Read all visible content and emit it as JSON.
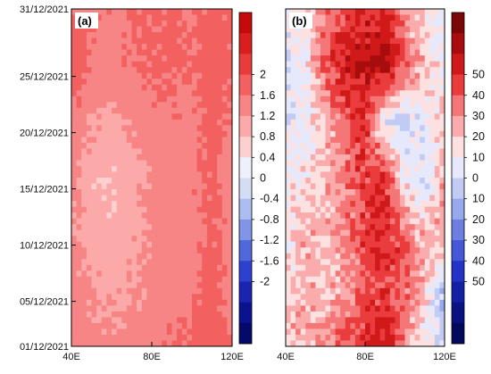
{
  "chart_data": [
    {
      "type": "heatmap",
      "panel_label": "(a)",
      "x_ticks": [
        "40E",
        "80E",
        "120E"
      ],
      "x_tick_values": [
        40,
        80,
        120
      ],
      "y_ticks": [
        "01/12/2021",
        "05/12/2021",
        "10/12/2021",
        "15/12/2021",
        "20/12/2021",
        "25/12/2021",
        "31/12/2021"
      ],
      "y_tick_values": [
        1,
        5,
        10,
        15,
        20,
        25,
        31
      ],
      "xlim": [
        40,
        120
      ],
      "ylim": [
        1,
        31
      ],
      "colorbar": {
        "labels": [
          "2",
          "1.6",
          "1.2",
          "0.8",
          "0.4",
          "0",
          "-0.4",
          "-0.8",
          "-1.2",
          "-1.6",
          "-2"
        ],
        "levels": [
          2,
          1.6,
          1.2,
          0.8,
          0.4,
          0,
          -0.4,
          -0.8,
          -1.2,
          -1.6,
          -2
        ],
        "colors": [
          "#c40a0a",
          "#d81e1e",
          "#e83c3c",
          "#f26060",
          "#f78585",
          "#fba9a9",
          "#fdd0d0",
          "#eef0fb",
          "#d4dcf6",
          "#aebdf0",
          "#8095e6",
          "#5068db",
          "#2e40cf",
          "#1a24b0",
          "#0c1190",
          "#050a6a"
        ]
      },
      "description_values_approx": {
        "x": [
          40,
          50,
          60,
          70,
          80,
          90,
          100,
          110,
          120
        ],
        "y": [
          1,
          5,
          10,
          15,
          20,
          25,
          31
        ],
        "z": [
          [
            0.8,
            0.5,
            0.5,
            0.6,
            0.7,
            0.8,
            0.9,
            1.2,
            0.7
          ],
          [
            0.6,
            0.4,
            0.3,
            0.4,
            0.5,
            0.6,
            0.7,
            1.0,
            0.6
          ],
          [
            0.5,
            0.2,
            0.1,
            0.3,
            0.5,
            0.6,
            0.6,
            0.9,
            0.6
          ],
          [
            0.6,
            0.1,
            0.0,
            0.2,
            0.5,
            0.6,
            0.7,
            0.9,
            0.6
          ],
          [
            0.7,
            0.4,
            0.3,
            0.5,
            0.6,
            0.7,
            0.7,
            1.0,
            0.7
          ],
          [
            1.2,
            0.8,
            0.6,
            0.8,
            0.9,
            0.9,
            0.8,
            1.1,
            0.9
          ],
          [
            0.8,
            0.7,
            0.7,
            0.8,
            0.8,
            0.9,
            0.8,
            0.9,
            0.8
          ]
        ]
      }
    },
    {
      "type": "heatmap",
      "panel_label": "(b)",
      "x_ticks": [
        "40E",
        "80E",
        "120E"
      ],
      "x_tick_values": [
        40,
        80,
        120
      ],
      "xlim": [
        40,
        120
      ],
      "ylim": [
        1,
        31
      ],
      "colorbar": {
        "labels": [
          "50",
          "40",
          "30",
          "20",
          "10",
          "0",
          "10",
          "20",
          "30",
          "40",
          "50"
        ],
        "levels": [
          50,
          40,
          30,
          20,
          10,
          0,
          -10,
          -20,
          -30,
          -40,
          -50
        ],
        "colors": [
          "#7a0606",
          "#a80d0d",
          "#d01919",
          "#ea3c3c",
          "#f47676",
          "#faabab",
          "#fde0e0",
          "#e6e9fb",
          "#c2cbf4",
          "#98a8ec",
          "#6d80e2",
          "#4458d8",
          "#2233c6",
          "#1420a4",
          "#0a1180",
          "#04095c"
        ]
      },
      "description_values_approx": {
        "x": [
          40,
          50,
          60,
          70,
          80,
          90,
          100,
          110,
          120
        ],
        "y": [
          1,
          5,
          10,
          15,
          20,
          25,
          31
        ],
        "z": [
          [
            5,
            0,
            10,
            20,
            30,
            35,
            10,
            -10,
            -20
          ],
          [
            -5,
            5,
            0,
            10,
            20,
            25,
            20,
            0,
            -30
          ],
          [
            -10,
            5,
            0,
            10,
            25,
            35,
            15,
            0,
            10
          ],
          [
            -10,
            -5,
            0,
            15,
            25,
            30,
            -10,
            -20,
            10
          ],
          [
            -15,
            -10,
            0,
            20,
            30,
            -15,
            -25,
            -10,
            0
          ],
          [
            -20,
            -10,
            20,
            35,
            40,
            45,
            20,
            0,
            -10
          ],
          [
            -10,
            -5,
            15,
            25,
            30,
            30,
            10,
            -5,
            -20
          ]
        ]
      }
    }
  ]
}
